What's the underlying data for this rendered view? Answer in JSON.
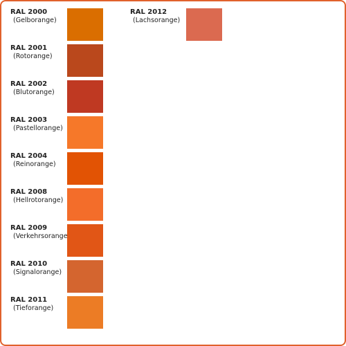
{
  "colors": [
    {
      "code": "RAL 2000",
      "name": "(Gelborange)",
      "hex": "#da6e00"
    },
    {
      "code": "RAL 2001",
      "name": "(Rotorange)",
      "hex": "#ba481c"
    },
    {
      "code": "RAL 2002",
      "name": "(Blutorange)",
      "hex": "#bf3922"
    },
    {
      "code": "RAL 2003",
      "name": "(Pastellorange)",
      "hex": "#f67829"
    },
    {
      "code": "RAL 2004",
      "name": "(Reinorange)",
      "hex": "#e25304"
    },
    {
      "code": "RAL 2008",
      "name": "(Hellrotorange)",
      "hex": "#f36d2a"
    },
    {
      "code": "RAL 2009",
      "name": "(Verkehrsorange)",
      "hex": "#e15616"
    },
    {
      "code": "RAL 2010",
      "name": "(Signalorange)",
      "hex": "#d4652f"
    },
    {
      "code": "RAL 2011",
      "name": "(Tieforange)",
      "hex": "#ec7c25"
    },
    {
      "code": "RAL 2012",
      "name": "(Lachsorange)",
      "hex": "#db6a50"
    }
  ]
}
